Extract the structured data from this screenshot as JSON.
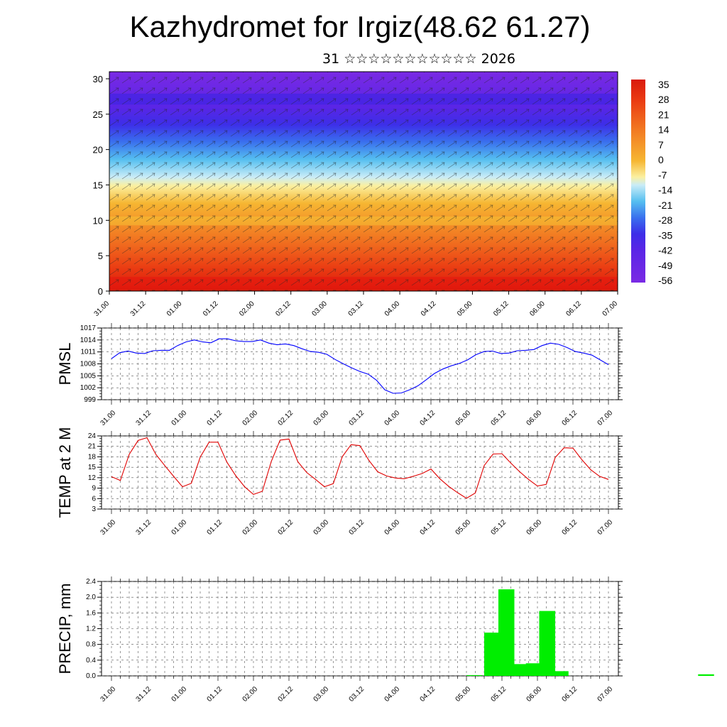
{
  "title": "Kazhydromet for Irgiz(48.62 61.27)",
  "subtitle": "31 ☆☆☆☆☆☆☆☆☆☆☆ 2026",
  "time_labels": [
    "31.00",
    "31.12",
    "01.00",
    "01.12",
    "02.00",
    "02.12",
    "03.00",
    "03.12",
    "04.00",
    "04.12",
    "05.00",
    "05.12",
    "06.00",
    "06.12",
    "07.00"
  ],
  "chart_data": [
    {
      "type": "heatmap",
      "name": "cross-section",
      "x_ticks": [
        "31.00",
        "31.12",
        "01.00",
        "01.12",
        "02.00",
        "02.12",
        "03.00",
        "03.12",
        "04.00",
        "04.12",
        "05.00",
        "05.12",
        "06.00",
        "06.12",
        "07.00"
      ],
      "y_ticks": [
        0,
        5,
        10,
        15,
        20,
        25,
        30
      ],
      "ylim": [
        0,
        31
      ],
      "colorbar_labels": [
        "35",
        "28",
        "21",
        "14",
        "7",
        "0",
        "-7",
        "-14",
        "-21",
        "-28",
        "-35",
        "-42",
        "-49",
        "-56"
      ],
      "colors": {
        "warm": "#e8160e",
        "mid": "#f5d23a",
        "cool": "#6bc7f0",
        "cold": "#5a28e6"
      }
    },
    {
      "type": "line",
      "ylabel": "PMSL",
      "yticks": [
        999,
        1002,
        1005,
        1008,
        1011,
        1014,
        1017
      ],
      "ylim": [
        999,
        1017
      ],
      "color": "#0000ff",
      "values": [
        1009.3,
        1010.8,
        1011.2,
        1010.7,
        1010.6,
        1011.3,
        1011.4,
        1011.4,
        1012.6,
        1013.5,
        1014.0,
        1013.5,
        1013.3,
        1014.3,
        1014.3,
        1013.8,
        1013.6,
        1013.6,
        1014.0,
        1013.2,
        1012.8,
        1013.0,
        1012.6,
        1011.8,
        1011.1,
        1010.9,
        1010.4,
        1009.1,
        1008.0,
        1007.0,
        1006.1,
        1005.4,
        1003.9,
        1001.5,
        1000.6,
        1000.7,
        1001.5,
        1002.5,
        1004.0,
        1005.6,
        1006.7,
        1007.5,
        1008.1,
        1009.0,
        1010.3,
        1011.1,
        1011.2,
        1010.6,
        1010.7,
        1011.3,
        1011.4,
        1011.6,
        1012.6,
        1013.2,
        1012.9,
        1012.1,
        1011.1,
        1010.7,
        1010.2,
        1009.0,
        1007.8
      ]
    },
    {
      "type": "line",
      "ylabel": "TEMP at 2 M",
      "yticks": [
        3,
        6,
        9,
        12,
        15,
        18,
        21,
        24
      ],
      "ylim": [
        3,
        24
      ],
      "color": "#e00000",
      "values": [
        12.3,
        11.2,
        18.7,
        22.7,
        23.5,
        18.7,
        15.5,
        12.4,
        9.4,
        10.4,
        17.9,
        22.2,
        22.2,
        16.5,
        12.6,
        9.4,
        7.2,
        8.1,
        16.6,
        22.8,
        23.1,
        16.6,
        13.5,
        11.5,
        9.4,
        10.3,
        18.0,
        21.5,
        21.2,
        17.0,
        13.7,
        12.5,
        11.9,
        11.7,
        12.4,
        13.2,
        14.5,
        11.7,
        9.5,
        7.7,
        6.1,
        7.6,
        15.5,
        18.8,
        18.9,
        16.2,
        13.7,
        11.5,
        9.6,
        10.1,
        17.8,
        20.6,
        20.5,
        17.2,
        14.3,
        12.4,
        11.5
      ]
    },
    {
      "type": "bar",
      "ylabel": "PRECIP, mm",
      "yticks": [
        "0.0",
        "0.4",
        "0.8",
        "1.2",
        "1.6",
        "2.0",
        "2.4"
      ],
      "ylim": [
        0,
        2.4
      ],
      "color": "#00ee00",
      "bars": [
        {
          "x": 40.9,
          "value": 0.02
        },
        {
          "x": 42.9,
          "value": 1.1
        },
        {
          "x": 44.5,
          "value": 2.2
        },
        {
          "x": 46.0,
          "value": 0.3
        },
        {
          "x": 47.6,
          "value": 0.32
        },
        {
          "x": 49.1,
          "value": 1.65
        },
        {
          "x": 50.6,
          "value": 0.12
        },
        {
          "x": 67.0,
          "value": 0.04
        }
      ]
    }
  ]
}
